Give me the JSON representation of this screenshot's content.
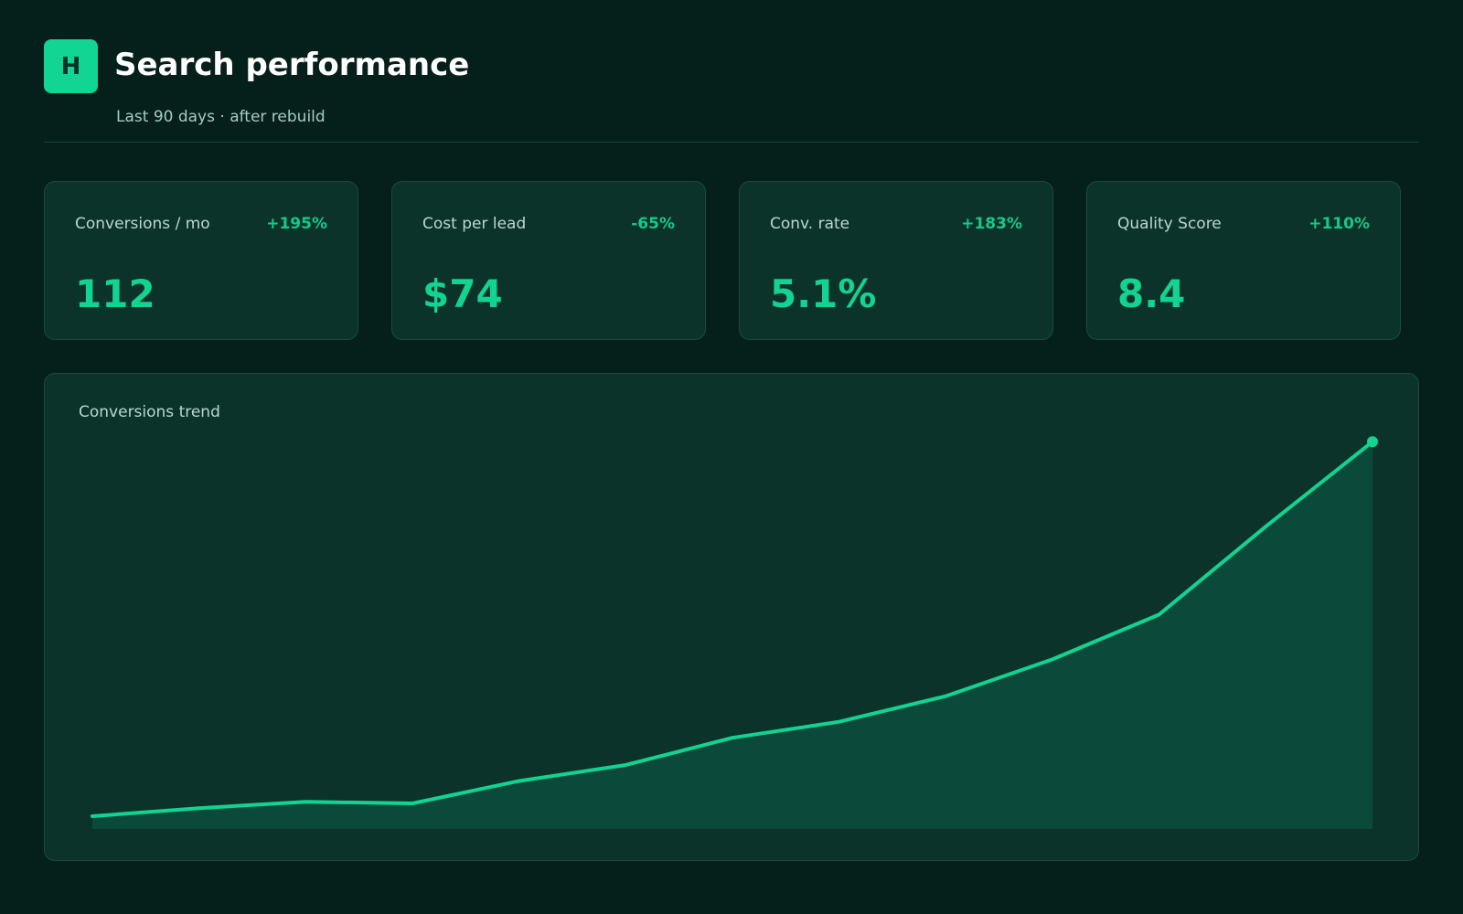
{
  "header": {
    "logo_letter": "H",
    "title": "Search performance",
    "subtitle": "Last 90 days  ·  after rebuild"
  },
  "kpis": [
    {
      "label": "Conversions / mo",
      "delta": "+195%",
      "value": "112"
    },
    {
      "label": "Cost per lead",
      "delta": "-65%",
      "value": "$74"
    },
    {
      "label": "Conv. rate",
      "delta": "+183%",
      "value": "5.1%"
    },
    {
      "label": "Quality Score",
      "delta": "+110%",
      "value": "8.4"
    }
  ],
  "colors": {
    "background": "#051f1b",
    "card": "#0c332a",
    "accent": "#12d391",
    "area_fill": "#0b4a3a"
  },
  "chart_data": {
    "type": "area",
    "title": "Conversions trend",
    "xlabel": "",
    "ylabel": "",
    "grid": false,
    "x": [
      1,
      2,
      3,
      4,
      5,
      6,
      7,
      8,
      9,
      10,
      11,
      12,
      13
    ],
    "series": [
      {
        "values": [
          4,
          9,
          13,
          12,
          26,
          36,
          53,
          63,
          79,
          102,
          130,
          185,
          238
        ]
      }
    ],
    "ylim": [
      -4,
      245
    ]
  }
}
